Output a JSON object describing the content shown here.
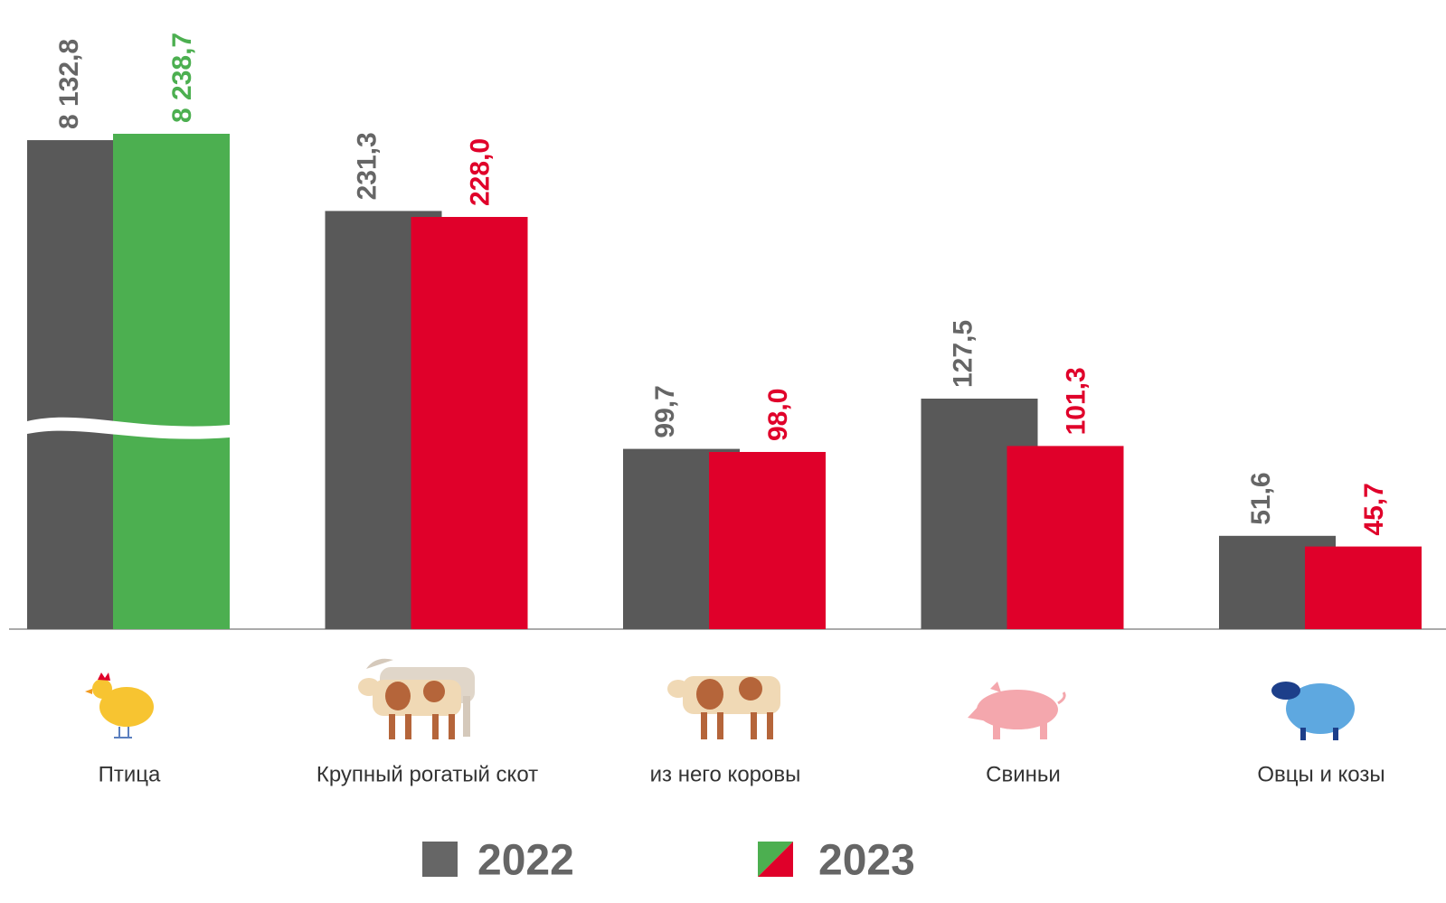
{
  "chart_data": {
    "type": "bar",
    "categories": [
      "Птица",
      "Крупный рогатый скот",
      "из него коровы",
      "Свиньи",
      "Овцы и козы"
    ],
    "series": [
      {
        "name": "2022",
        "color": "#595959",
        "values": [
          8132.8,
          231.3,
          99.7,
          127.5,
          51.6
        ],
        "value_labels": [
          "8 132,8",
          "231,3",
          "99,7",
          "127,5",
          "51,6"
        ]
      },
      {
        "name": "2023",
        "colors": [
          "#4caf50",
          "#e0002a",
          "#e0002a",
          "#e0002a",
          "#e0002a"
        ],
        "values": [
          8238.7,
          228.0,
          98.0,
          101.3,
          45.7
        ],
        "value_labels": [
          "8 238,7",
          "228,0",
          "98,0",
          "101,3",
          "45,7"
        ]
      }
    ],
    "ylim": [
      0,
      280
    ],
    "axis_break": true
  }
}
